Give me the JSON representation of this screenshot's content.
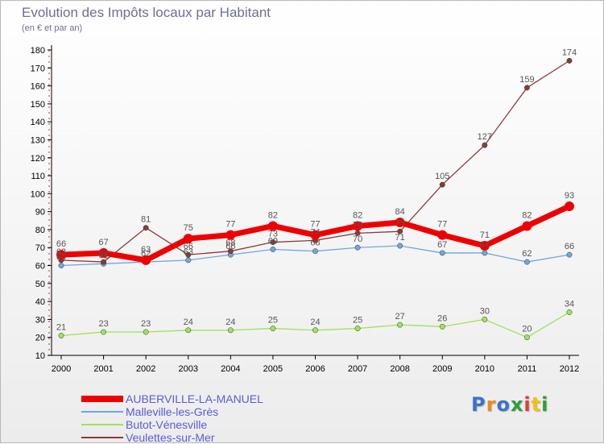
{
  "title": "Evolution des Impôts locaux par Habitant",
  "subtitle": "(en € et par an)",
  "logo": {
    "text": "Proxiti",
    "colors": [
      "#3b73c9",
      "#ef8a1b",
      "#3b73c9",
      "#2f9e3a",
      "#e53935",
      "#f4c20d",
      "#2f9e3a"
    ]
  },
  "chart_data": {
    "type": "line",
    "x": [
      "2000",
      "2001",
      "2002",
      "2003",
      "2004",
      "2005",
      "2006",
      "2007",
      "2008",
      "2009",
      "2010",
      "2011",
      "2012"
    ],
    "ylim": [
      10,
      180
    ],
    "yticks": [
      10,
      20,
      30,
      40,
      50,
      60,
      70,
      80,
      90,
      100,
      110,
      120,
      130,
      140,
      150,
      160,
      170,
      180
    ],
    "grid": false,
    "legend_position": "bottom-left",
    "series": [
      {
        "name": "AUBERVILLE-LA-MANUEL",
        "color": "#ee0000",
        "width": 7,
        "marker": 6,
        "label_pos": "above",
        "values": [
          66,
          67,
          63,
          75,
          77,
          82,
          77,
          82,
          84,
          77,
          71,
          82,
          93
        ]
      },
      {
        "name": "Malleville-les-Grès",
        "color": "#6fa8dc",
        "width": 1.3,
        "marker": 3.2,
        "label_pos": "above",
        "values": [
          60,
          61,
          62,
          63,
          66,
          69,
          68,
          70,
          71,
          67,
          67,
          62,
          66
        ]
      },
      {
        "name": "Butot-Vénesville",
        "color": "#9ee35a",
        "width": 1.3,
        "marker": 3.2,
        "label_pos": "above",
        "values": [
          21,
          23,
          23,
          24,
          24,
          25,
          24,
          25,
          27,
          26,
          30,
          20,
          34
        ]
      },
      {
        "name": "Veulettes-sur-Mer",
        "color": "#8b3a3a",
        "width": 1.3,
        "marker": 3.2,
        "label_pos": "above",
        "values": [
          63,
          62,
          81,
          66,
          68,
          73,
          74,
          78,
          79,
          105,
          127,
          159,
          174
        ]
      }
    ]
  }
}
